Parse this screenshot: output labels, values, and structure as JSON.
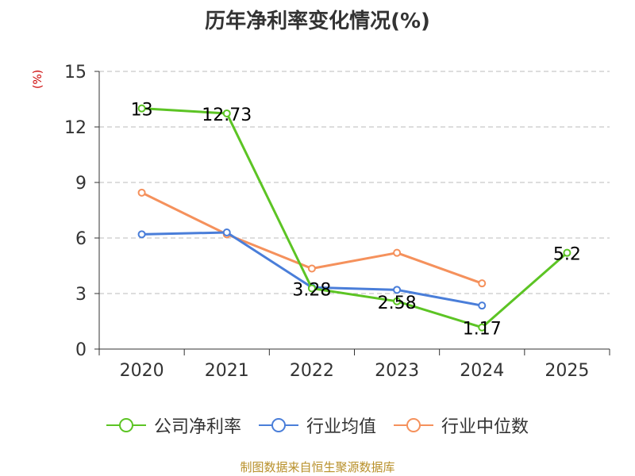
{
  "chart_data": {
    "type": "line",
    "title": "历年净利率变化情况(%)",
    "ylabel": "(%)",
    "categories": [
      "2020",
      "2021",
      "2022",
      "2023",
      "2024",
      "2025"
    ],
    "ylim": [
      0,
      15
    ],
    "yticks": [
      0,
      3,
      6,
      9,
      12,
      15
    ],
    "grid": true,
    "legend": "bottom",
    "series": [
      {
        "name": "公司净利率",
        "color": "#5cc424",
        "values": [
          13,
          12.73,
          3.28,
          2.58,
          1.17,
          5.2
        ],
        "labels": [
          "13",
          "12.73",
          "3.28",
          "2.58",
          "1.17",
          "5.2"
        ]
      },
      {
        "name": "行业均值",
        "color": "#4a7ed9",
        "values": [
          6.2,
          6.3,
          3.33,
          3.2,
          2.35,
          null
        ],
        "labels": []
      },
      {
        "name": "行业中位数",
        "color": "#f5915c",
        "values": [
          8.45,
          6.2,
          4.35,
          5.2,
          3.55,
          null
        ],
        "labels": []
      }
    ]
  },
  "footer": {
    "note": "制图数据来自恒生聚源数据库"
  }
}
